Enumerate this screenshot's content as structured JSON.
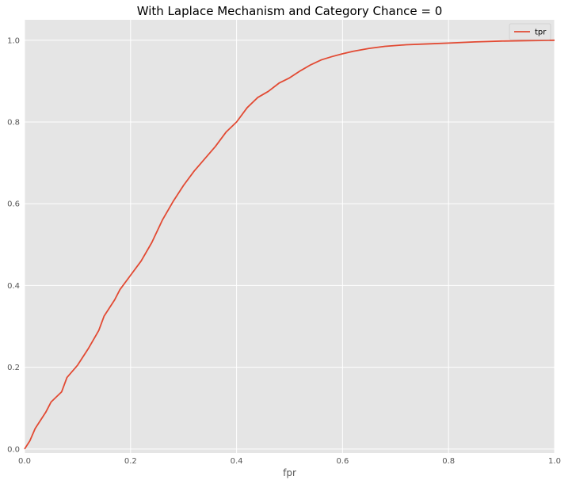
{
  "chart_data": {
    "type": "line",
    "title": "With Laplace Mechanism and Category Chance = 0",
    "xlabel": "fpr",
    "ylabel": "",
    "xlim": [
      0,
      1
    ],
    "ylim": [
      -0.01,
      1.05
    ],
    "xticks": [
      0.0,
      0.2,
      0.4,
      0.6,
      0.8,
      1.0
    ],
    "xtick_labels": [
      "0.0",
      "0.2",
      "0.4",
      "0.6",
      "0.8",
      "1.0"
    ],
    "yticks": [
      0.0,
      0.2,
      0.4,
      0.6,
      0.8,
      1.0
    ],
    "ytick_labels": [
      "0.0",
      "0.2",
      "0.4",
      "0.6",
      "0.8",
      "1.0"
    ],
    "grid": true,
    "legend_position": "upper right",
    "colors": {
      "series": "#e24a33",
      "plot_bg": "#e5e5e5",
      "grid": "#ffffff"
    },
    "series": [
      {
        "name": "tpr",
        "x": [
          0.0,
          0.01,
          0.02,
          0.04,
          0.05,
          0.07,
          0.08,
          0.1,
          0.12,
          0.14,
          0.15,
          0.17,
          0.18,
          0.2,
          0.22,
          0.24,
          0.26,
          0.28,
          0.3,
          0.32,
          0.34,
          0.36,
          0.38,
          0.4,
          0.42,
          0.44,
          0.46,
          0.48,
          0.5,
          0.52,
          0.54,
          0.56,
          0.58,
          0.6,
          0.62,
          0.65,
          0.68,
          0.72,
          0.76,
          0.8,
          0.85,
          0.9,
          0.95,
          1.0
        ],
        "y": [
          0.0,
          0.02,
          0.05,
          0.09,
          0.115,
          0.14,
          0.175,
          0.205,
          0.245,
          0.29,
          0.325,
          0.365,
          0.39,
          0.425,
          0.46,
          0.505,
          0.56,
          0.605,
          0.645,
          0.68,
          0.71,
          0.74,
          0.775,
          0.8,
          0.835,
          0.86,
          0.875,
          0.895,
          0.908,
          0.925,
          0.94,
          0.952,
          0.96,
          0.967,
          0.973,
          0.98,
          0.985,
          0.989,
          0.991,
          0.993,
          0.996,
          0.998,
          0.999,
          1.0
        ]
      }
    ]
  }
}
